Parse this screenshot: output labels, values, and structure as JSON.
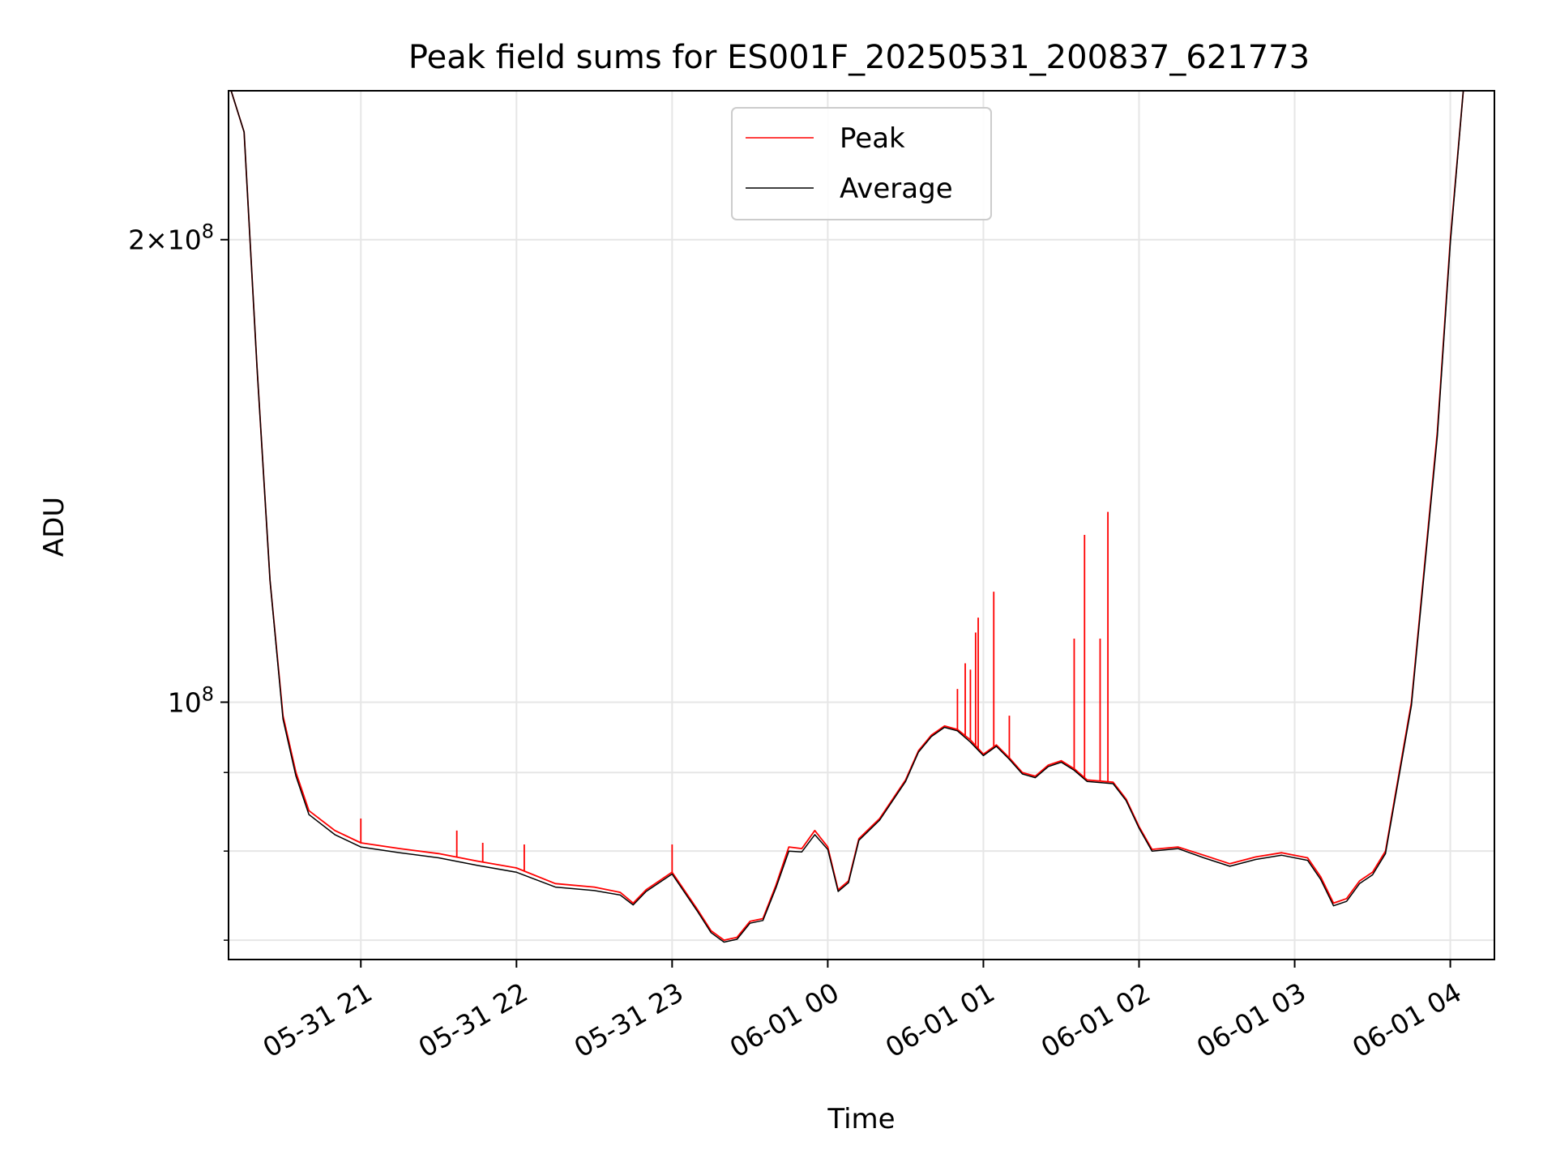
{
  "chart_data": {
    "type": "line",
    "title": "Peak field sums for ES001F_20250531_200837_621773",
    "xlabel": "Time",
    "ylabel": "ADU",
    "yscale": "log",
    "xlim": [
      "2025-05-31 20:09",
      "2025-06-01 04:17"
    ],
    "ylim": [
      68000000,
      250000000
    ],
    "grid": true,
    "legend_position": "upper center",
    "x_tick_labels": [
      "05-31 21",
      "05-31 22",
      "05-31 23",
      "06-01 00",
      "06-01 01",
      "06-01 02",
      "06-01 03",
      "06-01 04"
    ],
    "y_tick_labels": [
      {
        "value": 200000000,
        "mantissa": "2",
        "exponent": "8"
      },
      {
        "value": 100000000,
        "mantissa": "",
        "exponent": "8"
      }
    ],
    "y_minor_ticks": [
      70000000,
      80000000,
      90000000
    ],
    "series": [
      {
        "name": "Peak",
        "color": "#ff0000",
        "points": [
          [
            "2025-05-31 20:10",
            250000000
          ],
          [
            "2025-05-31 20:15",
            235000000
          ],
          [
            "2025-05-31 20:20",
            165000000
          ],
          [
            "2025-05-31 20:25",
            120000000
          ],
          [
            "2025-05-31 20:30",
            98000000
          ],
          [
            "2025-05-31 20:35",
            90000000
          ],
          [
            "2025-05-31 20:40",
            85000000
          ],
          [
            "2025-05-31 20:50",
            82500000
          ],
          [
            "2025-05-31 21:00",
            81000000
          ],
          [
            "2025-05-31 21:15",
            80300000
          ],
          [
            "2025-05-31 21:30",
            79700000
          ],
          [
            "2025-05-31 21:45",
            78800000
          ],
          [
            "2025-05-31 22:00",
            78000000
          ],
          [
            "2025-05-31 22:15",
            76200000
          ],
          [
            "2025-05-31 22:30",
            75800000
          ],
          [
            "2025-05-31 22:40",
            75200000
          ],
          [
            "2025-05-31 22:45",
            74000000
          ],
          [
            "2025-05-31 22:50",
            75500000
          ],
          [
            "2025-05-31 23:00",
            77500000
          ],
          [
            "2025-05-31 23:10",
            73200000
          ],
          [
            "2025-05-31 23:15",
            71000000
          ],
          [
            "2025-05-31 23:20",
            70000000
          ],
          [
            "2025-05-31 23:25",
            70300000
          ],
          [
            "2025-05-31 23:30",
            72000000
          ],
          [
            "2025-05-31 23:35",
            72300000
          ],
          [
            "2025-05-31 23:40",
            76000000
          ],
          [
            "2025-05-31 23:45",
            80500000
          ],
          [
            "2025-05-31 23:50",
            80300000
          ],
          [
            "2025-05-31 23:55",
            82500000
          ],
          [
            "2025-06-01 00:00",
            80500000
          ],
          [
            "2025-06-01 00:04",
            75500000
          ],
          [
            "2025-06-01 00:08",
            76500000
          ],
          [
            "2025-06-01 00:12",
            81500000
          ],
          [
            "2025-06-01 00:20",
            84000000
          ],
          [
            "2025-06-01 00:30",
            89000000
          ],
          [
            "2025-06-01 00:35",
            93000000
          ],
          [
            "2025-06-01 00:40",
            95200000
          ],
          [
            "2025-06-01 00:45",
            96500000
          ],
          [
            "2025-06-01 00:50",
            96000000
          ],
          [
            "2025-06-01 00:55",
            94500000
          ],
          [
            "2025-06-01 01:00",
            92500000
          ],
          [
            "2025-06-01 01:05",
            93800000
          ],
          [
            "2025-06-01 01:10",
            92000000
          ],
          [
            "2025-06-01 01:15",
            90000000
          ],
          [
            "2025-06-01 01:20",
            89500000
          ],
          [
            "2025-06-01 01:25",
            91000000
          ],
          [
            "2025-06-01 01:30",
            91600000
          ],
          [
            "2025-06-01 01:35",
            90500000
          ],
          [
            "2025-06-01 01:40",
            89000000
          ],
          [
            "2025-06-01 01:50",
            88700000
          ],
          [
            "2025-06-01 01:55",
            86500000
          ],
          [
            "2025-06-01 02:00",
            83000000
          ],
          [
            "2025-06-01 02:05",
            80200000
          ],
          [
            "2025-06-01 02:15",
            80500000
          ],
          [
            "2025-06-01 02:25",
            79500000
          ],
          [
            "2025-06-01 02:35",
            78500000
          ],
          [
            "2025-06-01 02:45",
            79300000
          ],
          [
            "2025-06-01 02:55",
            79800000
          ],
          [
            "2025-06-01 03:05",
            79200000
          ],
          [
            "2025-06-01 03:10",
            77000000
          ],
          [
            "2025-06-01 03:15",
            74000000
          ],
          [
            "2025-06-01 03:20",
            74500000
          ],
          [
            "2025-06-01 03:25",
            76500000
          ],
          [
            "2025-06-01 03:30",
            77500000
          ],
          [
            "2025-06-01 03:35",
            80000000
          ],
          [
            "2025-06-01 03:45",
            100000000
          ],
          [
            "2025-06-01 03:55",
            150000000
          ],
          [
            "2025-06-01 04:00",
            200000000
          ],
          [
            "2025-06-01 04:05",
            250000000
          ]
        ],
        "spikes": [
          [
            "2025-05-31 21:00",
            84000000
          ],
          [
            "2025-05-31 21:37",
            82500000
          ],
          [
            "2025-05-31 21:47",
            81000000
          ],
          [
            "2025-05-31 22:03",
            80800000
          ],
          [
            "2025-05-31 23:00",
            80800000
          ],
          [
            "2025-06-01 00:50",
            102000000
          ],
          [
            "2025-06-01 00:53",
            106000000
          ],
          [
            "2025-06-01 00:55",
            105000000
          ],
          [
            "2025-06-01 00:57",
            111000000
          ],
          [
            "2025-06-01 00:58",
            113500000
          ],
          [
            "2025-06-01 01:04",
            118000000
          ],
          [
            "2025-06-01 01:10",
            98000000
          ],
          [
            "2025-06-01 01:35",
            110000000
          ],
          [
            "2025-06-01 01:39",
            128500000
          ],
          [
            "2025-06-01 01:45",
            110000000
          ],
          [
            "2025-06-01 01:48",
            133000000
          ]
        ]
      },
      {
        "name": "Average",
        "color": "#000000",
        "points": [
          [
            "2025-05-31 20:10",
            250000000
          ],
          [
            "2025-05-31 20:15",
            235000000
          ],
          [
            "2025-05-31 20:20",
            165000000
          ],
          [
            "2025-05-31 20:25",
            120000000
          ],
          [
            "2025-05-31 20:30",
            97500000
          ],
          [
            "2025-05-31 20:35",
            89500000
          ],
          [
            "2025-05-31 20:40",
            84500000
          ],
          [
            "2025-05-31 20:50",
            82000000
          ],
          [
            "2025-05-31 21:00",
            80500000
          ],
          [
            "2025-05-31 21:15",
            79800000
          ],
          [
            "2025-05-31 21:30",
            79200000
          ],
          [
            "2025-05-31 21:45",
            78300000
          ],
          [
            "2025-05-31 22:00",
            77500000
          ],
          [
            "2025-05-31 22:15",
            75800000
          ],
          [
            "2025-05-31 22:30",
            75400000
          ],
          [
            "2025-05-31 22:40",
            74900000
          ],
          [
            "2025-05-31 22:45",
            73800000
          ],
          [
            "2025-05-31 22:50",
            75300000
          ],
          [
            "2025-05-31 23:00",
            77300000
          ],
          [
            "2025-05-31 23:10",
            73000000
          ],
          [
            "2025-05-31 23:15",
            70800000
          ],
          [
            "2025-05-31 23:20",
            69800000
          ],
          [
            "2025-05-31 23:25",
            70100000
          ],
          [
            "2025-05-31 23:30",
            71800000
          ],
          [
            "2025-05-31 23:35",
            72100000
          ],
          [
            "2025-05-31 23:40",
            75700000
          ],
          [
            "2025-05-31 23:45",
            80000000
          ],
          [
            "2025-05-31 23:50",
            79900000
          ],
          [
            "2025-05-31 23:55",
            82000000
          ],
          [
            "2025-06-01 00:00",
            80200000
          ],
          [
            "2025-06-01 00:04",
            75300000
          ],
          [
            "2025-06-01 00:08",
            76300000
          ],
          [
            "2025-06-01 00:12",
            81300000
          ],
          [
            "2025-06-01 00:20",
            83800000
          ],
          [
            "2025-06-01 00:30",
            88800000
          ],
          [
            "2025-06-01 00:35",
            92800000
          ],
          [
            "2025-06-01 00:40",
            95000000
          ],
          [
            "2025-06-01 00:45",
            96300000
          ],
          [
            "2025-06-01 00:50",
            95800000
          ],
          [
            "2025-06-01 00:55",
            94200000
          ],
          [
            "2025-06-01 01:00",
            92300000
          ],
          [
            "2025-06-01 01:05",
            93600000
          ],
          [
            "2025-06-01 01:10",
            91800000
          ],
          [
            "2025-06-01 01:15",
            89800000
          ],
          [
            "2025-06-01 01:20",
            89300000
          ],
          [
            "2025-06-01 01:25",
            90800000
          ],
          [
            "2025-06-01 01:30",
            91400000
          ],
          [
            "2025-06-01 01:35",
            90300000
          ],
          [
            "2025-06-01 01:40",
            88800000
          ],
          [
            "2025-06-01 01:50",
            88500000
          ],
          [
            "2025-06-01 01:55",
            86300000
          ],
          [
            "2025-06-01 02:00",
            82800000
          ],
          [
            "2025-06-01 02:05",
            80000000
          ],
          [
            "2025-06-01 02:15",
            80300000
          ],
          [
            "2025-06-01 02:25",
            79200000
          ],
          [
            "2025-06-01 02:35",
            78200000
          ],
          [
            "2025-06-01 02:45",
            79000000
          ],
          [
            "2025-06-01 02:55",
            79500000
          ],
          [
            "2025-06-01 03:05",
            78900000
          ],
          [
            "2025-06-01 03:10",
            76700000
          ],
          [
            "2025-06-01 03:15",
            73700000
          ],
          [
            "2025-06-01 03:20",
            74200000
          ],
          [
            "2025-06-01 03:25",
            76200000
          ],
          [
            "2025-06-01 03:30",
            77200000
          ],
          [
            "2025-06-01 03:35",
            79700000
          ],
          [
            "2025-06-01 03:45",
            99500000
          ],
          [
            "2025-06-01 03:55",
            149000000
          ],
          [
            "2025-06-01 04:00",
            199000000
          ],
          [
            "2025-06-01 04:05",
            250000000
          ]
        ]
      }
    ]
  }
}
